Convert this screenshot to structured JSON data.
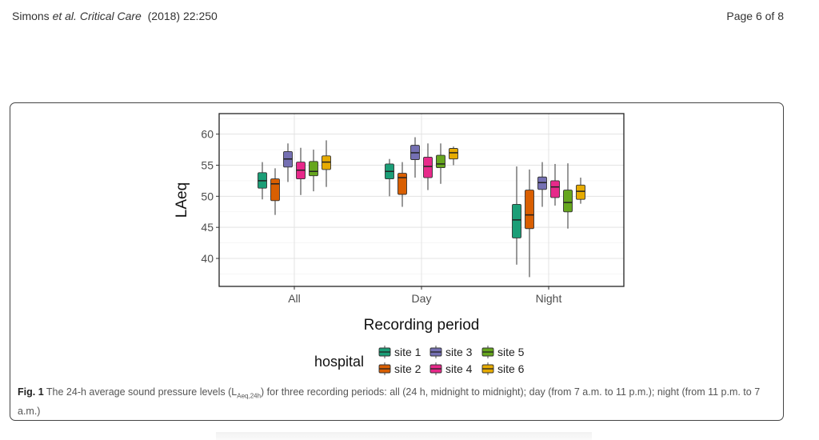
{
  "header": {
    "authors": "Simons",
    "etal": "et al.",
    "journal": "Critical Care",
    "citation": "(2018) 22:250",
    "page": "Page 6 of 8"
  },
  "caption": {
    "label": "Fig. 1",
    "text_before": " The 24-h average sound pressure levels (L",
    "sub": "Aeq,24h",
    "text_after": ") for three recording periods: all (24 h, midnight to midnight); day (from 7 a.m. to 11 p.m.); night (from 11 p.m. to 7 a.m.)"
  },
  "chart_data": {
    "type": "boxplot",
    "xlabel": "Recording period",
    "ylabel": "LAeq",
    "ylim": [
      35.5,
      63.3
    ],
    "yticks": [
      40,
      45,
      50,
      55,
      60
    ],
    "categories": [
      "All",
      "Day",
      "Night"
    ],
    "grid": true,
    "legend": {
      "title": "hospital",
      "position": "bottom"
    },
    "series": [
      {
        "name": "site 1",
        "color": "#1b9e77",
        "values": [
          {
            "min": 49.5,
            "q1": 51.3,
            "median": 52.5,
            "q3": 53.8,
            "max": 55.5
          },
          {
            "min": 50.0,
            "q1": 52.8,
            "median": 54.0,
            "q3": 55.2,
            "max": 56.0
          },
          {
            "min": 39.0,
            "q1": 43.3,
            "median": 46.2,
            "q3": 48.7,
            "max": 54.8
          }
        ]
      },
      {
        "name": "site 2",
        "color": "#d95f02",
        "values": [
          {
            "min": 47.0,
            "q1": 49.3,
            "median": 52.0,
            "q3": 52.8,
            "max": 54.5
          },
          {
            "min": 48.3,
            "q1": 50.3,
            "median": 53.0,
            "q3": 53.7,
            "max": 55.5
          },
          {
            "min": 37.0,
            "q1": 44.8,
            "median": 47.0,
            "q3": 51.0,
            "max": 54.3
          }
        ]
      },
      {
        "name": "site 3",
        "color": "#7570b3",
        "values": [
          {
            "min": 52.3,
            "q1": 54.7,
            "median": 56.0,
            "q3": 57.2,
            "max": 58.5
          },
          {
            "min": 53.0,
            "q1": 55.9,
            "median": 57.0,
            "q3": 58.2,
            "max": 59.5
          },
          {
            "min": 48.3,
            "q1": 51.1,
            "median": 52.2,
            "q3": 53.1,
            "max": 55.5
          }
        ]
      },
      {
        "name": "site 4",
        "color": "#e7298a",
        "values": [
          {
            "min": 50.2,
            "q1": 52.8,
            "median": 54.2,
            "q3": 55.5,
            "max": 57.8
          },
          {
            "min": 51.0,
            "q1": 53.0,
            "median": 54.8,
            "q3": 56.3,
            "max": 58.5
          },
          {
            "min": 48.5,
            "q1": 49.8,
            "median": 51.5,
            "q3": 52.5,
            "max": 55.2
          }
        ]
      },
      {
        "name": "site 5",
        "color": "#66a61e",
        "values": [
          {
            "min": 50.8,
            "q1": 53.3,
            "median": 54.0,
            "q3": 55.6,
            "max": 57.5
          },
          {
            "min": 52.0,
            "q1": 54.6,
            "median": 55.2,
            "q3": 56.6,
            "max": 58.5
          },
          {
            "min": 44.8,
            "q1": 47.5,
            "median": 49.0,
            "q3": 51.0,
            "max": 55.3
          }
        ]
      },
      {
        "name": "site 6",
        "color": "#e6ab02",
        "values": [
          {
            "min": 51.5,
            "q1": 54.3,
            "median": 55.5,
            "q3": 56.5,
            "max": 59.0
          },
          {
            "min": 55.0,
            "q1": 56.0,
            "median": 57.0,
            "q3": 57.7,
            "max": 58.0
          },
          {
            "min": 48.8,
            "q1": 49.5,
            "median": 50.8,
            "q3": 51.8,
            "max": 53.0
          }
        ]
      }
    ]
  }
}
